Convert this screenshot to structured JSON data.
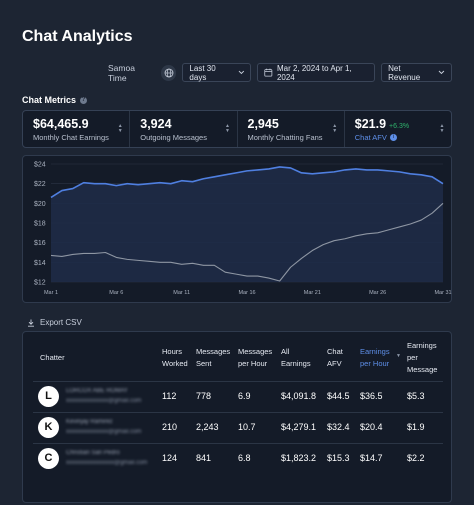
{
  "header": {
    "title": "Chat Analytics"
  },
  "controls": {
    "timezone_label": "Samoa Time",
    "range_value": "Last 30 days",
    "date_range": "Mar 2, 2024 to Apr 1, 2024",
    "metric_value": "Net Revenue"
  },
  "metrics_section": {
    "title": "Chat Metrics"
  },
  "metrics": [
    {
      "value": "$64,465.9",
      "label": "Monthly Chat Earnings"
    },
    {
      "value": "3,924",
      "label": "Outgoing Messages"
    },
    {
      "value": "2,945",
      "label": "Monthly Chatting Fans"
    },
    {
      "value": "$21.9",
      "delta": "+6.3%",
      "label": "Chat AFV"
    }
  ],
  "chart_data": {
    "type": "line",
    "ylim": [
      12,
      24
    ],
    "yticks": [
      "$12",
      "$14",
      "$16",
      "$18",
      "$20",
      "$22",
      "$24"
    ],
    "xticks": [
      "Mar 1",
      "Mar 6",
      "Mar 11",
      "Mar 16",
      "Mar 21",
      "Mar 26",
      "Mar 31"
    ],
    "grid": true,
    "series": [
      {
        "values": [
          20.6,
          21.3,
          21.5,
          22.1,
          22.0,
          22.0,
          21.8,
          22.0,
          21.9,
          22.0,
          22.1,
          22.0,
          22.3,
          22.2,
          22.5,
          22.7,
          22.9,
          23.1,
          23.3,
          23.4,
          23.5,
          23.7,
          23.6,
          23.1,
          23.0,
          23.1,
          23.2,
          23.4,
          23.5,
          23.4,
          23.4,
          23.3,
          23.2,
          23.0,
          22.9,
          22.7,
          22.0
        ],
        "color": "#4f7fe0"
      },
      {
        "values": [
          14.7,
          14.6,
          14.8,
          14.9,
          14.9,
          15.0,
          14.5,
          14.3,
          14.2,
          14.1,
          14.0,
          14.0,
          13.8,
          13.9,
          13.7,
          13.7,
          13.0,
          12.8,
          12.6,
          12.6,
          12.4,
          12.1,
          13.5,
          14.4,
          15.2,
          15.8,
          16.2,
          16.4,
          16.7,
          16.9,
          17.0,
          17.3,
          17.6,
          17.9,
          18.3,
          19.0,
          20.0
        ],
        "color": "#8e96a3"
      }
    ]
  },
  "export": {
    "label": "Export CSV"
  },
  "table": {
    "headers": {
      "chatter": "Chatter",
      "hours": [
        "Hours",
        "Worked"
      ],
      "messages": [
        "Messages",
        "Sent"
      ],
      "mph": [
        "Messages",
        "per Hour"
      ],
      "earnings": [
        "All",
        "Earnings"
      ],
      "afv": [
        "Chat",
        "AFV"
      ],
      "eph": [
        "Earnings",
        "per Hour"
      ],
      "epm": [
        "Earnings",
        "per",
        "Message"
      ]
    },
    "rows": [
      {
        "initial": "L",
        "name": "LORCOX ABE ROMAY",
        "email": "xxxxxxxxxxxxxx@gmail.com",
        "hours": "112",
        "messages": "778",
        "mph": "6.9",
        "earnings": "$4,091.8",
        "afv": "$44.5",
        "eph": "$36.5",
        "epm": "$5.3"
      },
      {
        "initial": "K",
        "name": "Kevinjay Ramirez",
        "email": "xxxxxxxxxxxxxx@gmail.com",
        "hours": "210",
        "messages": "2,243",
        "mph": "10.7",
        "earnings": "$4,279.1",
        "afv": "$32.4",
        "eph": "$20.4",
        "epm": "$1.9"
      },
      {
        "initial": "C",
        "name": "Christian San Pedro",
        "email": "xxxxxxxxxxxxxxxx@gmail.com",
        "hours": "124",
        "messages": "841",
        "mph": "6.8",
        "earnings": "$1,823.2",
        "afv": "$15.3",
        "eph": "$14.7",
        "epm": "$2.2"
      }
    ]
  }
}
